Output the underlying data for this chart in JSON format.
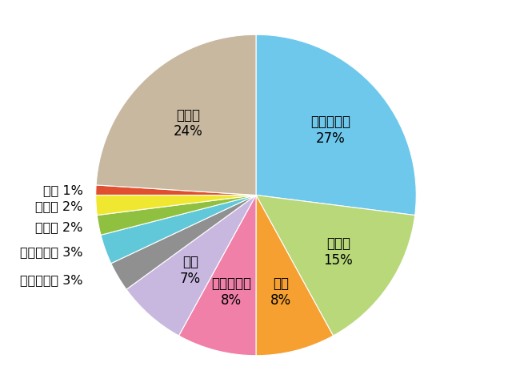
{
  "slices": [
    {
      "label": "悪性新生物",
      "pct": 27,
      "color": "#6EC8EC"
    },
    {
      "label": "心疾患",
      "pct": 15,
      "color": "#B8D87A"
    },
    {
      "label": "老衰",
      "pct": 8,
      "color": "#F5A030"
    },
    {
      "label": "脳血管疾患",
      "pct": 8,
      "color": "#F080A8"
    },
    {
      "label": "肺炎",
      "pct": 7,
      "color": "#C8B8E0"
    },
    {
      "label": "不慮の事故",
      "pct": 3,
      "color": "#909090"
    },
    {
      "label": "誤嚥性肺炎",
      "pct": 3,
      "color": "#60C8D8"
    },
    {
      "label": "腎不全",
      "pct": 2,
      "color": "#90C040"
    },
    {
      "label": "認知症",
      "pct": 2,
      "color": "#F0E830"
    },
    {
      "label": "自殺",
      "pct": 1,
      "color": "#E05030"
    },
    {
      "label": "その他",
      "pct": 24,
      "color": "#C8B8A0"
    }
  ],
  "startangle": 90,
  "figsize": [
    6.4,
    4.89
  ],
  "dpi": 100,
  "background_color": "#ffffff",
  "inner_label_fontsize": 12,
  "outer_label_fontsize": 11.5,
  "inner_r": 0.62
}
